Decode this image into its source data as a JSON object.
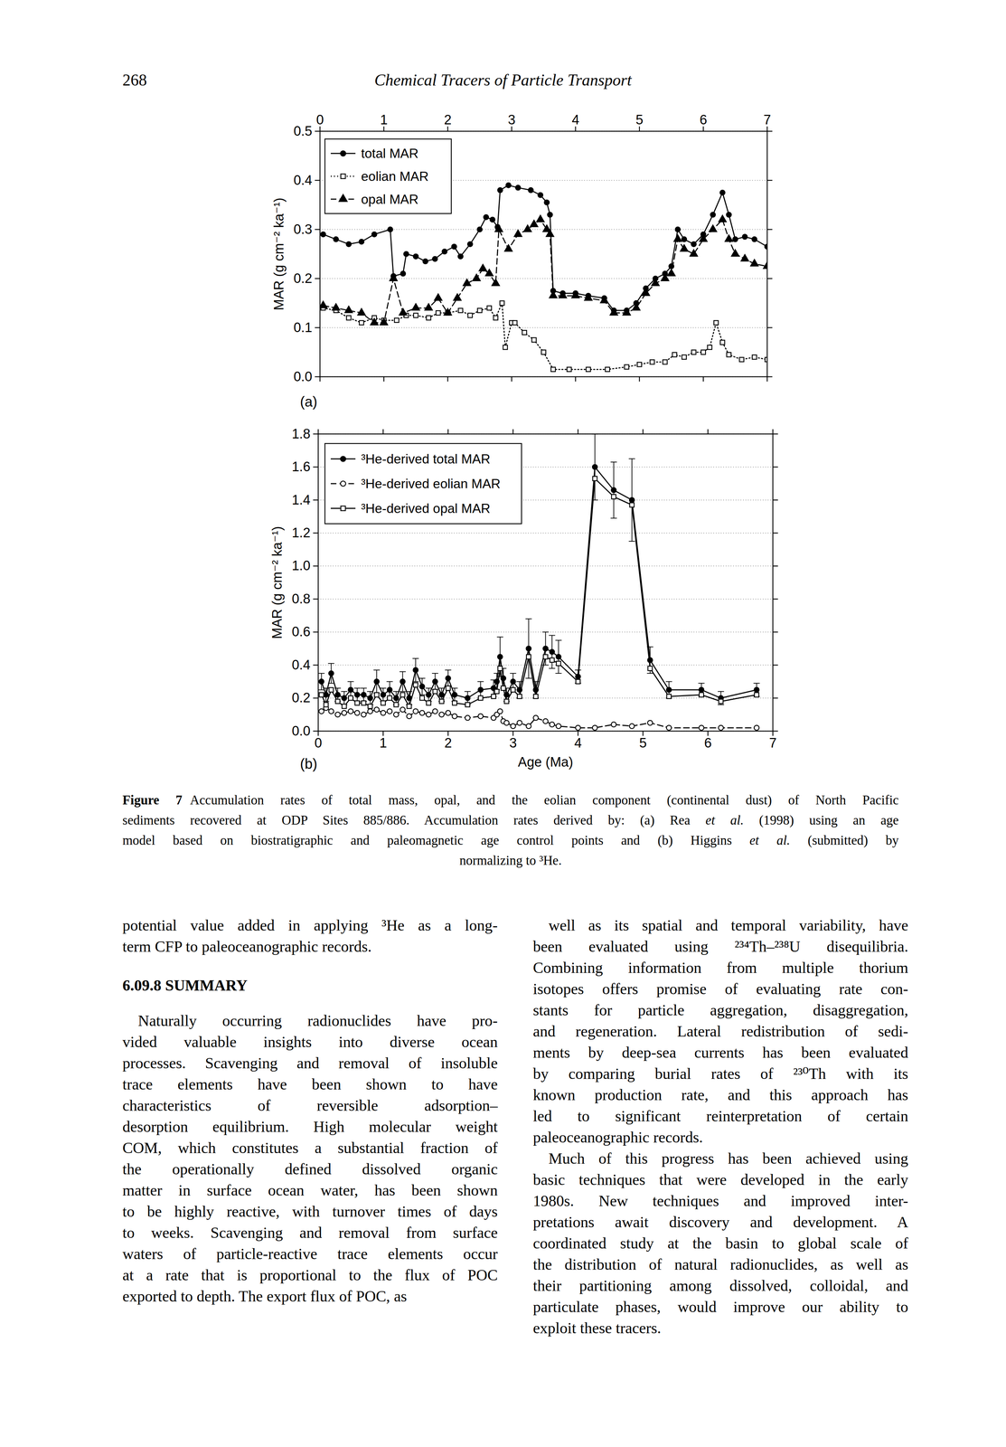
{
  "header": {
    "page_number": "268",
    "running_head": "Chemical Tracers of Particle Transport"
  },
  "chart_data": [
    {
      "type": "line",
      "annotations": [
        "(a)"
      ],
      "ylabel": "MAR (g cm⁻² ka⁻¹)",
      "xlim": [
        0,
        7
      ],
      "xticks": [
        0,
        1,
        2,
        3,
        4,
        5,
        6,
        7
      ],
      "ylim": [
        0,
        0.5
      ],
      "yticks": [
        {
          "value": 0,
          "label": "0.0"
        },
        0.1,
        0.2,
        0.3,
        0.4,
        0.5
      ],
      "grid": true,
      "legend": "top-left",
      "series": [
        {
          "name": "total MAR",
          "color": "#000000",
          "marker": "circle",
          "line_style": "solid",
          "x": [
            0.05,
            0.25,
            0.45,
            0.65,
            0.85,
            1.1,
            1.15,
            1.3,
            1.35,
            1.5,
            1.65,
            1.8,
            1.95,
            2.1,
            2.2,
            2.35,
            2.5,
            2.6,
            2.7,
            2.78,
            2.82,
            2.95,
            3.1,
            3.3,
            3.45,
            3.55,
            3.6,
            3.65,
            3.8,
            4.0,
            4.2,
            4.45,
            4.6,
            4.8,
            4.95,
            5.1,
            5.25,
            5.4,
            5.5,
            5.6,
            5.7,
            5.85,
            6.0,
            6.15,
            6.3,
            6.4,
            6.5,
            6.65,
            6.8,
            7.0
          ],
          "values": [
            0.29,
            0.28,
            0.27,
            0.275,
            0.29,
            0.3,
            0.205,
            0.21,
            0.25,
            0.245,
            0.235,
            0.24,
            0.255,
            0.265,
            0.245,
            0.27,
            0.3,
            0.325,
            0.32,
            0.305,
            0.38,
            0.39,
            0.385,
            0.38,
            0.37,
            0.355,
            0.33,
            0.175,
            0.17,
            0.17,
            0.165,
            0.16,
            0.135,
            0.135,
            0.15,
            0.18,
            0.2,
            0.21,
            0.225,
            0.3,
            0.28,
            0.27,
            0.29,
            0.33,
            0.375,
            0.33,
            0.28,
            0.285,
            0.28,
            0.265
          ]
        },
        {
          "name": "eolian MAR",
          "color": "#000000",
          "marker": "square-open",
          "line_style": "dotted",
          "x": [
            0.05,
            0.25,
            0.45,
            0.65,
            0.85,
            1.0,
            1.2,
            1.35,
            1.5,
            1.7,
            1.85,
            2.0,
            2.2,
            2.35,
            2.5,
            2.65,
            2.75,
            2.85,
            2.9,
            3.0,
            3.05,
            3.2,
            3.35,
            3.5,
            3.65,
            3.9,
            4.2,
            4.5,
            4.8,
            5.0,
            5.2,
            5.4,
            5.55,
            5.7,
            5.85,
            6.0,
            6.1,
            6.2,
            6.3,
            6.4,
            6.6,
            6.8,
            7.0
          ],
          "values": [
            0.14,
            0.135,
            0.12,
            0.11,
            0.12,
            0.115,
            0.115,
            0.125,
            0.125,
            0.12,
            0.13,
            0.13,
            0.135,
            0.125,
            0.135,
            0.14,
            0.12,
            0.15,
            0.06,
            0.11,
            0.11,
            0.09,
            0.075,
            0.05,
            0.015,
            0.015,
            0.015,
            0.015,
            0.02,
            0.025,
            0.03,
            0.03,
            0.045,
            0.04,
            0.05,
            0.05,
            0.06,
            0.11,
            0.07,
            0.045,
            0.035,
            0.04,
            0.035
          ]
        },
        {
          "name": "opal MAR",
          "color": "#000000",
          "marker": "triangle",
          "line_style": "dashed",
          "x": [
            0.05,
            0.25,
            0.45,
            0.65,
            0.85,
            1.0,
            1.15,
            1.3,
            1.5,
            1.7,
            1.85,
            2.0,
            2.15,
            2.3,
            2.45,
            2.55,
            2.65,
            2.75,
            2.8,
            2.95,
            3.1,
            3.25,
            3.35,
            3.45,
            3.55,
            3.6,
            3.65,
            3.8,
            4.0,
            4.2,
            4.45,
            4.6,
            4.8,
            4.95,
            5.1,
            5.25,
            5.4,
            5.5,
            5.6,
            5.7,
            5.85,
            6.0,
            6.15,
            6.3,
            6.4,
            6.5,
            6.65,
            6.8,
            7.0
          ],
          "values": [
            0.145,
            0.14,
            0.135,
            0.13,
            0.11,
            0.11,
            0.2,
            0.13,
            0.14,
            0.14,
            0.16,
            0.13,
            0.16,
            0.19,
            0.2,
            0.22,
            0.21,
            0.19,
            0.3,
            0.26,
            0.29,
            0.3,
            0.31,
            0.32,
            0.3,
            0.29,
            0.165,
            0.165,
            0.165,
            0.16,
            0.155,
            0.13,
            0.13,
            0.14,
            0.17,
            0.19,
            0.2,
            0.21,
            0.28,
            0.26,
            0.25,
            0.28,
            0.3,
            0.32,
            0.28,
            0.25,
            0.24,
            0.23,
            0.225
          ]
        }
      ]
    },
    {
      "type": "line",
      "annotations": [
        "(b)"
      ],
      "xlabel": "Age (Ma)",
      "ylabel": "MAR (g cm⁻² ka⁻¹)",
      "xlim": [
        0,
        7
      ],
      "xticks": [
        0,
        1,
        2,
        3,
        4,
        5,
        6,
        7
      ],
      "ylim": [
        0,
        1.8
      ],
      "yticks": [
        {
          "value": 0,
          "label": "0.0"
        },
        0.2,
        0.4,
        0.6,
        0.8,
        {
          "value": 1,
          "label": "1.0"
        },
        1.2,
        1.4,
        1.6,
        1.8
      ],
      "grid": true,
      "legend": "top-left",
      "x": [
        0.05,
        0.12,
        0.2,
        0.3,
        0.4,
        0.5,
        0.6,
        0.7,
        0.8,
        0.9,
        1.0,
        1.1,
        1.2,
        1.3,
        1.4,
        1.5,
        1.6,
        1.7,
        1.8,
        1.9,
        2.0,
        2.1,
        2.3,
        2.5,
        2.7,
        2.75,
        2.8,
        2.85,
        2.9,
        3.0,
        3.1,
        3.24,
        3.35,
        3.5,
        3.6,
        3.7,
        4.0,
        4.26,
        4.55,
        4.83,
        5.11,
        5.4,
        5.9,
        6.2,
        6.75
      ],
      "series": [
        {
          "name": "³He-derived total MAR",
          "color": "#000000",
          "marker": "circle",
          "line_style": "solid",
          "values": [
            0.3,
            0.22,
            0.35,
            0.22,
            0.2,
            0.25,
            0.22,
            0.22,
            0.2,
            0.3,
            0.22,
            0.25,
            0.2,
            0.3,
            0.2,
            0.37,
            0.27,
            0.22,
            0.3,
            0.22,
            0.32,
            0.22,
            0.2,
            0.25,
            0.26,
            0.3,
            0.45,
            0.32,
            0.22,
            0.3,
            0.25,
            0.5,
            0.25,
            0.5,
            0.48,
            0.45,
            0.33,
            1.6,
            1.46,
            1.4,
            0.43,
            0.25,
            0.25,
            0.2,
            0.25
          ],
          "error": [
            0.05,
            0.04,
            0.06,
            0.04,
            0.04,
            0.05,
            0.04,
            0.04,
            0.04,
            0.07,
            0.04,
            0.05,
            0.04,
            0.06,
            0.04,
            0.07,
            0.05,
            0.04,
            0.05,
            0.04,
            0.05,
            0.04,
            0.04,
            0.05,
            0.05,
            0.05,
            0.12,
            0.06,
            0.04,
            0.05,
            0.05,
            0.18,
            0.05,
            0.1,
            0.1,
            0.1,
            0.04,
            0.2,
            0.17,
            0.25,
            0.08,
            0.05,
            0.04,
            0.04,
            0.04
          ]
        },
        {
          "name": "³He-derived eolian MAR",
          "color": "#000000",
          "marker": "circle-open",
          "line_style": "dashed",
          "values": [
            0.12,
            0.14,
            0.12,
            0.1,
            0.11,
            0.12,
            0.11,
            0.1,
            0.12,
            0.13,
            0.11,
            0.12,
            0.1,
            0.13,
            0.09,
            0.12,
            0.11,
            0.1,
            0.12,
            0.1,
            0.11,
            0.09,
            0.08,
            0.09,
            0.08,
            0.1,
            0.12,
            0.06,
            0.05,
            0.03,
            0.05,
            0.03,
            0.08,
            0.06,
            0.04,
            0.03,
            0.02,
            0.02,
            0.04,
            0.03,
            0.05,
            0.02,
            0.02,
            0.02,
            0.02
          ]
        },
        {
          "name": "³He-derived opal MAR",
          "color": "#000000",
          "marker": "square-open",
          "line_style": "solid",
          "values": [
            0.22,
            0.16,
            0.25,
            0.18,
            0.15,
            0.2,
            0.17,
            0.17,
            0.15,
            0.22,
            0.17,
            0.2,
            0.16,
            0.22,
            0.15,
            0.28,
            0.2,
            0.17,
            0.24,
            0.18,
            0.26,
            0.17,
            0.16,
            0.2,
            0.21,
            0.24,
            0.38,
            0.26,
            0.18,
            0.25,
            0.21,
            0.45,
            0.21,
            0.45,
            0.43,
            0.41,
            0.3,
            1.53,
            1.42,
            1.37,
            0.38,
            0.21,
            0.22,
            0.18,
            0.22
          ]
        }
      ]
    }
  ],
  "caption": {
    "lines": [
      [
        {
          "text": "Figure 7",
          "style": "bold"
        },
        "Accumulation rates of total mass, opal, and the eolian component (continental dust) of North Pacific"
      ],
      [
        "sediments recovered at ODP Sites 885/886. Accumulation rates derived by: (a) Rea ",
        {
          "text": "et al.",
          "style": "italic"
        },
        " (1998) using an age"
      ],
      [
        "model based on biostratigraphic and paleomagnetic age control points and (b) Higgins ",
        {
          "text": "et al.",
          "style": "italic"
        },
        " (submitted) by"
      ],
      [
        "normalizing to ³He."
      ]
    ]
  },
  "body": {
    "columns": [
      [
        {
          "type": "paragraph",
          "lines": [
            "potential value added in applying ³He as a long-",
            "term CFP to paleoceanographic records."
          ]
        },
        {
          "type": "heading",
          "text": "6.09.8 SUMMARY"
        },
        {
          "type": "paragraph",
          "lines": [
            "Naturally occurring radionuclides have pro-",
            "vided valuable insights into diverse ocean",
            "processes. Scavenging and removal of insoluble",
            "trace elements have been shown to have",
            "characteristics of reversible adsorption–",
            "desorption equilibrium. High molecular weight",
            "COM, which constitutes a substantial fraction of",
            "the operationally defined dissolved organic",
            "matter in surface ocean water, has been shown",
            "to be highly reactive, with turnover times of days",
            "to weeks. Scavenging and removal from surface",
            "waters of particle-reactive trace elements occur",
            "at a rate that is proportional to the flux of POC",
            "exported to depth. The export flux of POC, as"
          ]
        }
      ],
      [
        {
          "type": "paragraph",
          "lines": [
            "well as its spatial and temporal variability, have",
            "been evaluated using ²³⁴Th–²³⁸U disequilibria.",
            "Combining information from multiple thorium",
            "isotopes offers promise of evaluating rate con-",
            "stants for particle aggregation, disaggregation,",
            "and regeneration. Lateral redistribution of sedi-",
            "ments by deep-sea currents has been evaluated",
            "by comparing burial rates of ²³⁰Th with its",
            "known production rate, and this approach has",
            "led to significant reinterpretation of certain",
            "paleoceanographic records."
          ]
        },
        {
          "type": "paragraph",
          "lines": [
            "Much of this progress has been achieved using",
            "basic techniques that were developed in the early",
            "1980s. New techniques and improved inter-",
            "pretations await discovery and development. A",
            "coordinated study at the basin to global scale of",
            "the distribution of natural radionuclides, as well as",
            "their partitioning among dissolved, colloidal, and",
            "particulate phases, would improve our ability to",
            "exploit these tracers."
          ]
        }
      ]
    ]
  }
}
